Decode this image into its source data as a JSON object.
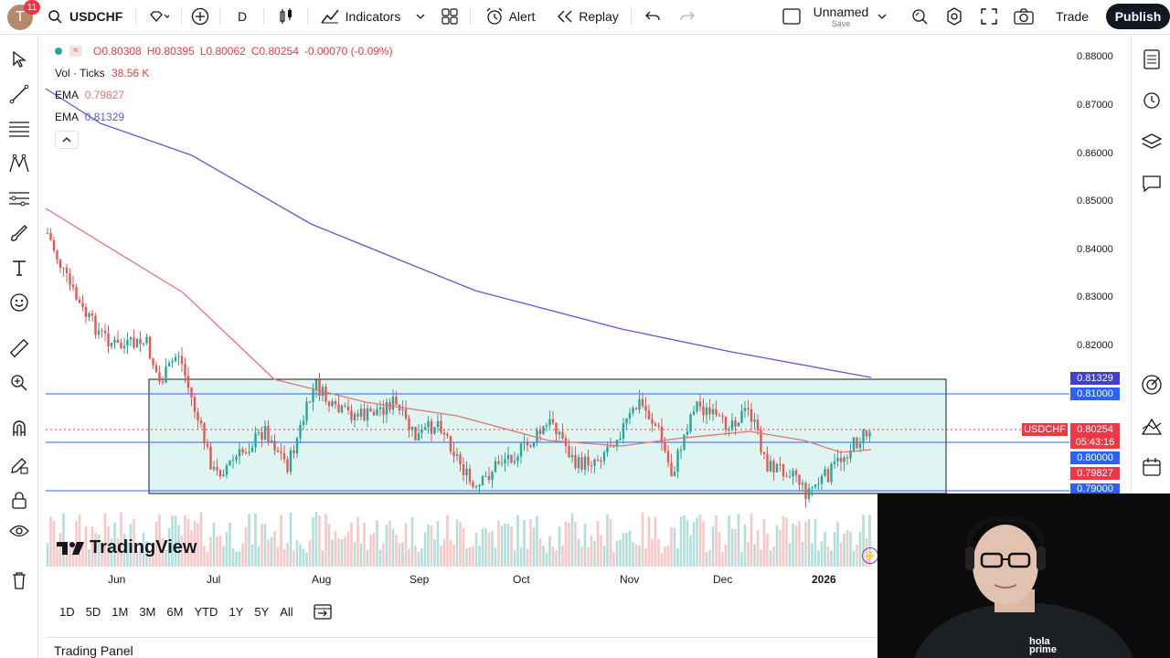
{
  "topbar": {
    "avatar_letter": "T",
    "notifications": "11",
    "symbol": "USDCHF",
    "interval": "D",
    "indicators": "Indicators",
    "alert": "Alert",
    "replay": "Replay",
    "layout_name": "Unnamed",
    "layout_sub": "Save",
    "trade": "Trade",
    "publish": "Publish"
  },
  "legend": {
    "open": "O0.80308",
    "high": "H0.80395",
    "low": "L0.80062",
    "close": "C0.80254",
    "change": "-0.00070 (-0.09%)",
    "vol_label": "Vol · Ticks",
    "vol_value": "38.56 K",
    "ema1_label": "EMA",
    "ema1_value": "0.79827",
    "ema2_label": "EMA",
    "ema2_value": "0.81329"
  },
  "price_axis": [
    "0.88000",
    "0.87000",
    "0.86000",
    "0.85000",
    "0.84000",
    "0.83000",
    "0.82000"
  ],
  "price_tags": {
    "ema_slow": "0.81329",
    "line_upper": "0.81000",
    "symbol_tag": "USDCHF",
    "last": "0.80254",
    "countdown": "05:43:16",
    "line_mid": "0.80000",
    "ema_fast": "0.79827",
    "line_lower": "0.79000"
  },
  "time_axis": [
    "Jun",
    "Jul",
    "Aug",
    "Sep",
    "Oct",
    "Nov",
    "Dec",
    "2026"
  ],
  "ranges": [
    "1D",
    "5D",
    "1M",
    "3M",
    "6M",
    "YTD",
    "1Y",
    "5Y",
    "All"
  ],
  "watermark": "TradingView",
  "bottom_panel": "Trading Panel",
  "webcam_logo": "hola prime",
  "colors": {
    "up": "#26a69a",
    "down": "#ef5350",
    "ema_fast": "#e57373",
    "ema_slow": "#5b5bd6",
    "box_fill": "#dff5f2",
    "accent": "#2962ff"
  }
}
